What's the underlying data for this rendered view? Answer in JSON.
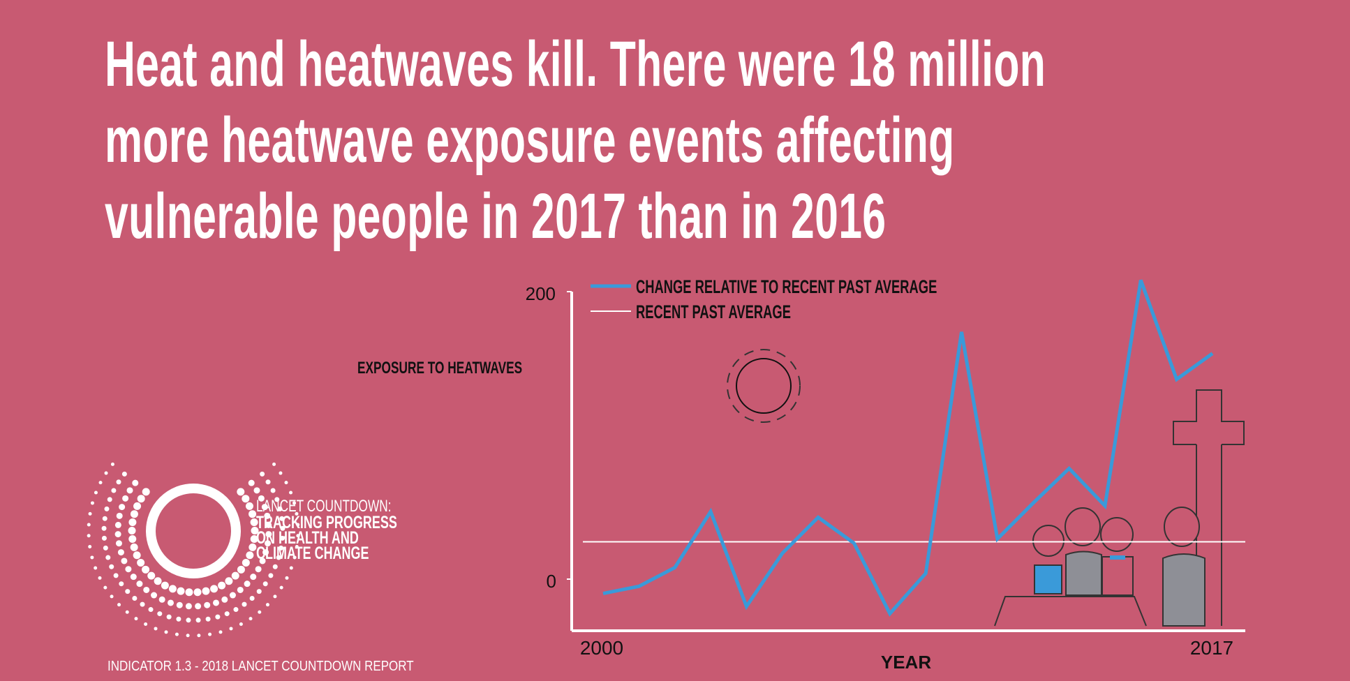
{
  "headline": {
    "lines": [
      "Heat and heatwaves kill. There were 18 million",
      "more heatwave exposure events affecting",
      "vulnerable people in 2017 than in 2016"
    ]
  },
  "logo": {
    "line1": "LANCET COUNTDOWN:",
    "line2": "TRACKING PROGRESS",
    "line3": "ON HEALTH AND",
    "line4": "CLIMATE CHANGE"
  },
  "footer": "INDICATOR 1.3 - 2018 LANCET COUNTDOWN REPORT",
  "colors": {
    "background": "#c85a72",
    "series": "#3a9ad9",
    "average": "#ffffff",
    "axis": "#ffffff"
  },
  "chart_data": {
    "type": "line",
    "ylabel": "EXPOSURE TO HEATWAVES",
    "xlabel": "YEAR",
    "x_tick_labels": [
      "2000",
      "2017"
    ],
    "y_tick_labels": [
      "200",
      "0"
    ],
    "xlim": [
      2000,
      2017
    ],
    "ylim": [
      -35,
      210
    ],
    "grid": false,
    "legend_placement": "top-left",
    "legend": [
      "CHANGE RELATIVE TO RECENT PAST AVERAGE",
      "RECENT PAST AVERAGE"
    ],
    "x": [
      2000,
      2001,
      2002,
      2003,
      2004,
      2005,
      2006,
      2007,
      2008,
      2009,
      2010,
      2011,
      2012,
      2013,
      2014,
      2015,
      2016,
      2017
    ],
    "series": [
      {
        "name": "CHANGE RELATIVE TO RECENT PAST AVERAGE",
        "values": [
          -10,
          -5,
          8,
          47,
          -19,
          18,
          43,
          25,
          -24,
          4,
          172,
          28,
          53,
          77,
          51,
          208,
          139,
          157
        ]
      }
    ],
    "reference_line": {
      "name": "RECENT PAST AVERAGE",
      "value": 26
    }
  }
}
